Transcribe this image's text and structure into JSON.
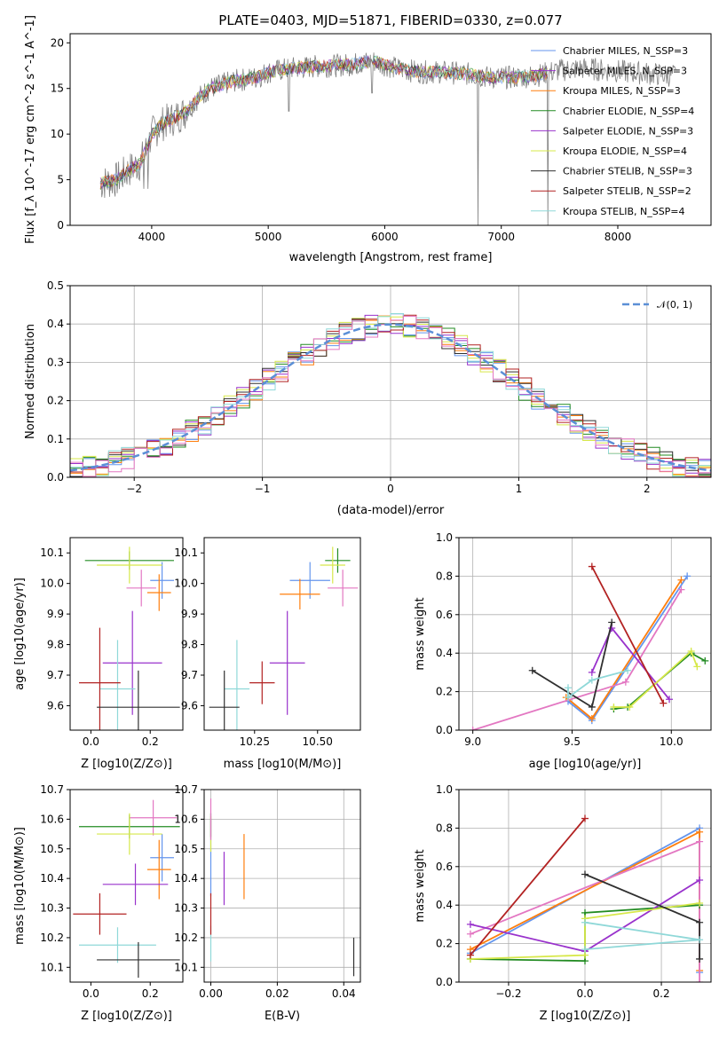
{
  "chart_data": [
    {
      "type": "line",
      "title": "PLATE=0403, MJD=51871, FIBERID=0330, z=0.077",
      "xlabel": "wavelength [Angstrom, rest frame]",
      "ylabel": "Flux [f_λ 10^-17 erg cm^-2 s^-1 A^-1]",
      "xlim": [
        3300,
        8800
      ],
      "ylim": [
        0,
        21
      ],
      "xticks": [
        "4000",
        "5000",
        "6000",
        "7000",
        "8000"
      ],
      "yticks": [
        "0",
        "5",
        "10",
        "15",
        "20"
      ],
      "grid": false,
      "legend_position": "top-right",
      "series": [
        {
          "name": "Chabrier MILES, N_SSP=3"
        },
        {
          "name": "Salpeter MILES, N_SSP=3"
        },
        {
          "name": "Kroupa MILES, N_SSP=3"
        },
        {
          "name": "Chabrier ELODIE, N_SSP=4"
        },
        {
          "name": "Salpeter ELODIE, N_SSP=3"
        },
        {
          "name": "Kroupa ELODIE, N_SSP=4"
        },
        {
          "name": "Chabrier STELIB, N_SSP=3"
        },
        {
          "name": "Salpeter STELIB, N_SSP=2"
        },
        {
          "name": "Kroupa STELIB, N_SSP=4"
        }
      ],
      "continuum": [
        [
          3560,
          4.6
        ],
        [
          3700,
          5.0
        ],
        [
          3800,
          6.0
        ],
        [
          3900,
          6.8
        ],
        [
          3960,
          8.5
        ],
        [
          4000,
          10.0
        ],
        [
          4100,
          11.2
        ],
        [
          4200,
          11.8
        ],
        [
          4300,
          12.5
        ],
        [
          4400,
          14.0
        ],
        [
          4500,
          15.0
        ],
        [
          4700,
          15.8
        ],
        [
          4900,
          16.2
        ],
        [
          5000,
          16.8
        ],
        [
          5200,
          17.2
        ],
        [
          5400,
          17.4
        ],
        [
          5700,
          17.6
        ],
        [
          5900,
          18.0
        ],
        [
          6100,
          17.2
        ],
        [
          6300,
          16.8
        ],
        [
          6500,
          16.8
        ],
        [
          6700,
          16.6
        ],
        [
          6900,
          16.2
        ],
        [
          7100,
          16.2
        ],
        [
          7300,
          16.4
        ],
        [
          7500,
          17.0
        ],
        [
          7700,
          17.2
        ],
        [
          7900,
          17.0
        ],
        [
          8100,
          16.8
        ],
        [
          8300,
          16.6
        ],
        [
          8500,
          16.4
        ]
      ],
      "colors": [
        "#6495ed",
        "#9932cc",
        "#ff7f0e",
        "#228b22",
        "#9932cc",
        "#d7e84a",
        "#303030",
        "#b22222",
        "#8fd8d8"
      ]
    },
    {
      "type": "histogram",
      "xlabel": "(data-model)/error",
      "ylabel": "Normed distribution",
      "xlim": [
        -2.5,
        2.5
      ],
      "ylim": [
        0,
        0.5
      ],
      "xticks": [
        "−2",
        "−1",
        "0",
        "1",
        "2"
      ],
      "yticks": [
        "0.0",
        "0.1",
        "0.2",
        "0.3",
        "0.4",
        "0.5"
      ],
      "grid": true,
      "legend_position": "top-right",
      "reference": {
        "name": "𝒩(0, 1)",
        "mu": 0,
        "sigma": 1
      },
      "bin_width": 0.1,
      "histogram_colors": [
        "#6495ed",
        "#ff7f0e",
        "#228b22",
        "#9932cc",
        "#d7e84a",
        "#303030",
        "#b22222",
        "#8fd8d8",
        "#e377c2"
      ]
    },
    {
      "type": "errorbar",
      "xlabel": "Z [log10(Z/Z⊙)]",
      "ylabel": "age  [log10(age/yr)]",
      "xlim": [
        -0.07,
        0.31
      ],
      "ylim": [
        9.52,
        10.15
      ],
      "xticks": [
        "0.0",
        "0.2"
      ],
      "yticks": [
        "9.6",
        "9.7",
        "9.8",
        "9.9",
        "10.0",
        "10.1"
      ],
      "grid": false,
      "points": [
        {
          "x": 0.24,
          "xerr": 0.04,
          "y": 10.01,
          "yerr": 0.06,
          "color": "#6495ed"
        },
        {
          "x": 0.23,
          "xerr": 0.04,
          "y": 9.97,
          "yerr": 0.06,
          "color": "#ff7f0e"
        },
        {
          "x": 0.17,
          "xerr": 0.05,
          "y": 9.985,
          "yerr": 0.06,
          "color": "#e377c2"
        },
        {
          "x": 0.13,
          "xerr": 0.15,
          "y": 10.075,
          "yerr": 0.03,
          "color": "#228b22"
        },
        {
          "x": 0.13,
          "xerr": 0.11,
          "y": 10.06,
          "yerr": 0.06,
          "color": "#d7e84a"
        },
        {
          "x": 0.14,
          "xerr": 0.1,
          "y": 9.74,
          "yerr": 0.17,
          "color": "#9932cc"
        },
        {
          "x": 0.09,
          "xerr": 0.06,
          "y": 9.655,
          "yerr": 0.16,
          "color": "#8fd8d8"
        },
        {
          "x": 0.03,
          "xerr": 0.07,
          "y": 9.675,
          "yerr": 0.18,
          "color": "#b22222"
        },
        {
          "x": 0.16,
          "xerr": 0.14,
          "y": 9.595,
          "yerr": 0.12,
          "color": "#303030"
        }
      ]
    },
    {
      "type": "errorbar",
      "xlabel": "mass [log10(M/M⊙)]",
      "ylabel": "",
      "xlim": [
        10.05,
        10.67
      ],
      "ylim": [
        9.52,
        10.15
      ],
      "xticks": [
        "10.25",
        "10.50"
      ],
      "yticks": [
        "9.6",
        "9.7",
        "9.8",
        "9.9",
        "10.0",
        "10.1"
      ],
      "grid": false,
      "points": [
        {
          "x": 10.47,
          "xerr": 0.08,
          "y": 10.01,
          "yerr": 0.06,
          "color": "#6495ed"
        },
        {
          "x": 10.43,
          "xerr": 0.08,
          "y": 9.965,
          "yerr": 0.05,
          "color": "#ff7f0e"
        },
        {
          "x": 10.6,
          "xerr": 0.06,
          "y": 9.985,
          "yerr": 0.06,
          "color": "#e377c2"
        },
        {
          "x": 10.58,
          "xerr": 0.05,
          "y": 10.075,
          "yerr": 0.04,
          "color": "#228b22"
        },
        {
          "x": 10.56,
          "xerr": 0.05,
          "y": 10.06,
          "yerr": 0.06,
          "color": "#d7e84a"
        },
        {
          "x": 10.38,
          "xerr": 0.07,
          "y": 9.74,
          "yerr": 0.17,
          "color": "#9932cc"
        },
        {
          "x": 10.18,
          "xerr": 0.05,
          "y": 9.655,
          "yerr": 0.16,
          "color": "#8fd8d8"
        },
        {
          "x": 10.28,
          "xerr": 0.05,
          "y": 9.675,
          "yerr": 0.07,
          "color": "#b22222"
        },
        {
          "x": 10.13,
          "xerr": 0.06,
          "y": 9.595,
          "yerr": 0.12,
          "color": "#303030"
        }
      ]
    },
    {
      "type": "line",
      "xlabel": "age  [log10(age/yr)]",
      "ylabel": "mass weight",
      "xlim": [
        8.93,
        10.2
      ],
      "ylim": [
        0,
        1
      ],
      "xticks": [
        "9.0",
        "9.5",
        "10.0"
      ],
      "yticks": [
        "0.0",
        "0.2",
        "0.4",
        "0.6",
        "0.8",
        "1.0"
      ],
      "grid": true,
      "series": [
        {
          "color": "#6495ed",
          "points": [
            [
              9.48,
              0.15
            ],
            [
              9.6,
              0.05
            ],
            [
              10.08,
              0.8
            ]
          ]
        },
        {
          "color": "#ff7f0e",
          "points": [
            [
              9.47,
              0.17
            ],
            [
              9.6,
              0.06
            ],
            [
              10.05,
              0.78
            ]
          ]
        },
        {
          "color": "#e377c2",
          "points": [
            [
              9.0,
              0.0
            ],
            [
              9.77,
              0.25
            ],
            [
              10.05,
              0.73
            ]
          ]
        },
        {
          "color": "#228b22",
          "points": [
            [
              9.71,
              0.11
            ],
            [
              9.78,
              0.12
            ],
            [
              10.1,
              0.4
            ],
            [
              10.17,
              0.36
            ]
          ]
        },
        {
          "color": "#9932cc",
          "points": [
            [
              9.6,
              0.3
            ],
            [
              9.7,
              0.53
            ],
            [
              9.99,
              0.16
            ]
          ]
        },
        {
          "color": "#d7e84a",
          "points": [
            [
              9.71,
              0.12
            ],
            [
              9.79,
              0.12
            ],
            [
              10.1,
              0.41
            ],
            [
              10.13,
              0.33
            ]
          ]
        },
        {
          "color": "#303030",
          "points": [
            [
              9.3,
              0.31
            ],
            [
              9.6,
              0.12
            ],
            [
              9.7,
              0.56
            ]
          ]
        },
        {
          "color": "#b22222",
          "points": [
            [
              9.6,
              0.85
            ],
            [
              9.96,
              0.14
            ]
          ]
        },
        {
          "color": "#8fd8d8",
          "points": [
            [
              9.48,
              0.22
            ],
            [
              9.48,
              0.17
            ],
            [
              9.6,
              0.26
            ],
            [
              9.78,
              0.31
            ]
          ]
        }
      ]
    },
    {
      "type": "errorbar",
      "xlabel": "Z [log10(Z/Z⊙)]",
      "ylabel": "mass [log10(M/M⊙)]",
      "xlim": [
        -0.07,
        0.31
      ],
      "ylim": [
        10.05,
        10.7
      ],
      "xticks": [
        "0.0",
        "0.2"
      ],
      "yticks": [
        "10.1",
        "10.2",
        "10.3",
        "10.4",
        "10.5",
        "10.6",
        "10.7"
      ],
      "grid": false,
      "points": [
        {
          "x": 0.24,
          "xerr": 0.04,
          "y": 10.47,
          "yerr": 0.08,
          "color": "#6495ed"
        },
        {
          "x": 0.23,
          "xerr": 0.04,
          "y": 10.43,
          "yerr": 0.1,
          "color": "#ff7f0e"
        },
        {
          "x": 0.21,
          "xerr": 0.08,
          "y": 10.605,
          "yerr": 0.06,
          "color": "#e377c2"
        },
        {
          "x": 0.13,
          "xerr": 0.17,
          "y": 10.575,
          "yerr": 0.04,
          "color": "#228b22"
        },
        {
          "x": 0.13,
          "xerr": 0.11,
          "y": 10.55,
          "yerr": 0.07,
          "color": "#d7e84a"
        },
        {
          "x": 0.15,
          "xerr": 0.11,
          "y": 10.38,
          "yerr": 0.07,
          "color": "#9932cc"
        },
        {
          "x": 0.09,
          "xerr": 0.13,
          "y": 10.175,
          "yerr": 0.06,
          "color": "#8fd8d8"
        },
        {
          "x": 0.03,
          "xerr": 0.09,
          "y": 10.28,
          "yerr": 0.07,
          "color": "#b22222"
        },
        {
          "x": 0.16,
          "xerr": 0.14,
          "y": 10.125,
          "yerr": 0.06,
          "color": "#303030"
        }
      ]
    },
    {
      "type": "errorbar",
      "xlabel": "E(B-V)",
      "ylabel": "",
      "xlim": [
        -0.002,
        0.045
      ],
      "ylim": [
        10.05,
        10.7
      ],
      "xticks": [
        "0.00",
        "0.02",
        "0.04"
      ],
      "yticks": [
        "10.1",
        "10.2",
        "10.3",
        "10.4",
        "10.5",
        "10.6",
        "10.7"
      ],
      "grid": true,
      "points": [
        {
          "x": 0.0,
          "xerr": 0,
          "y": 10.47,
          "yerr": 0.13,
          "color": "#6495ed"
        },
        {
          "x": 0.0,
          "xerr": 0,
          "y": 10.55,
          "yerr": 0.06,
          "color": "#d7e84a"
        },
        {
          "x": 0.0,
          "xerr": 0,
          "y": 10.58,
          "yerr": 0.04,
          "color": "#228b22"
        },
        {
          "x": 0.0,
          "xerr": 0,
          "y": 10.18,
          "yerr": 0.06,
          "color": "#8fd8d8"
        },
        {
          "x": 0.0,
          "xerr": 0,
          "y": 10.28,
          "yerr": 0.07,
          "color": "#b22222"
        },
        {
          "x": 0.0,
          "xerr": 0,
          "y": 10.6,
          "yerr": 0.07,
          "color": "#e377c2"
        },
        {
          "x": 0.004,
          "xerr": 0,
          "y": 10.4,
          "yerr": 0.09,
          "color": "#9932cc"
        },
        {
          "x": 0.01,
          "xerr": 0,
          "y": 10.44,
          "yerr": 0.11,
          "color": "#ff7f0e"
        },
        {
          "x": 0.043,
          "xerr": 0,
          "y": 10.135,
          "yerr": 0.065,
          "color": "#303030"
        }
      ]
    },
    {
      "type": "line",
      "xlabel": "Z [log10(Z/Z⊙)]",
      "ylabel": "mass weight",
      "xlim": [
        -0.33,
        0.33
      ],
      "ylim": [
        0,
        1
      ],
      "xticks": [
        "−0.2",
        "0.0",
        "0.2"
      ],
      "yticks": [
        "0.0",
        "0.2",
        "0.4",
        "0.6",
        "0.8",
        "1.0"
      ],
      "grid": true,
      "series": [
        {
          "color": "#6495ed",
          "points": [
            [
              -0.3,
              0.15
            ],
            [
              0.3,
              0.8
            ],
            [
              0.3,
              0.05
            ]
          ]
        },
        {
          "color": "#ff7f0e",
          "points": [
            [
              -0.3,
              0.17
            ],
            [
              0.3,
              0.78
            ],
            [
              0.3,
              0.06
            ]
          ]
        },
        {
          "color": "#e377c2",
          "points": [
            [
              -0.3,
              0.25
            ],
            [
              0.3,
              0.73
            ],
            [
              0.3,
              0.0
            ]
          ]
        },
        {
          "color": "#228b22",
          "points": [
            [
              -0.3,
              0.12
            ],
            [
              0.0,
              0.11
            ],
            [
              0.0,
              0.36
            ],
            [
              0.3,
              0.4
            ]
          ]
        },
        {
          "color": "#9932cc",
          "points": [
            [
              -0.3,
              0.3
            ],
            [
              0.0,
              0.16
            ],
            [
              0.3,
              0.53
            ]
          ]
        },
        {
          "color": "#d7e84a",
          "points": [
            [
              -0.3,
              0.12
            ],
            [
              0.0,
              0.14
            ],
            [
              0.0,
              0.33
            ],
            [
              0.3,
              0.41
            ]
          ]
        },
        {
          "color": "#303030",
          "points": [
            [
              0.0,
              0.56
            ],
            [
              0.3,
              0.31
            ],
            [
              0.3,
              0.12
            ]
          ]
        },
        {
          "color": "#b22222",
          "points": [
            [
              -0.3,
              0.14
            ],
            [
              0.0,
              0.85
            ]
          ]
        },
        {
          "color": "#8fd8d8",
          "points": [
            [
              0.0,
              0.31
            ],
            [
              0.3,
              0.22
            ],
            [
              0.0,
              0.17
            ]
          ]
        }
      ]
    }
  ]
}
